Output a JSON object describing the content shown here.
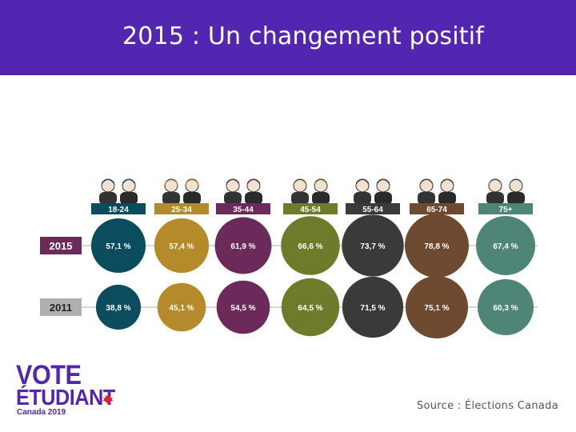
{
  "header": {
    "title": "2015 : Un changement positif"
  },
  "logo": {
    "line1": "VOTE",
    "line2": "ÉTUDIANT",
    "line3": "Canada 2019"
  },
  "source": "Source : Élections Canada",
  "colors": {
    "header_bg": "#5226b0",
    "year_2015_label_bg": "#6b2a5a",
    "year_2011_label_bg": "#b0b0b0",
    "age_colors": [
      "#0b4d5e",
      "#b48a2a",
      "#6b2a5a",
      "#6f7a2a",
      "#3a3a3a",
      "#6d4a30",
      "#4f8576"
    ]
  },
  "chart_data": {
    "type": "bubble",
    "categories": [
      "18-24",
      "25-34",
      "35-44",
      "45-54",
      "55-64",
      "65-74",
      "75+"
    ],
    "series": [
      {
        "name": "2015",
        "values": [
          57.1,
          57.4,
          61.9,
          66.6,
          73.7,
          78.8,
          67.4
        ],
        "labels": [
          "57,1 %",
          "57,4 %",
          "61,9 %",
          "66,6 %",
          "73,7 %",
          "78,8 %",
          "67,4 %"
        ]
      },
      {
        "name": "2011",
        "values": [
          38.8,
          45.1,
          54.5,
          64.5,
          71.5,
          75.1,
          60.3
        ],
        "labels": [
          "38,8 %",
          "45,1 %",
          "54,5 %",
          "64,5 %",
          "71,5 %",
          "75,1 %",
          "60,3 %"
        ]
      }
    ],
    "unit": "%",
    "legend": "left"
  }
}
